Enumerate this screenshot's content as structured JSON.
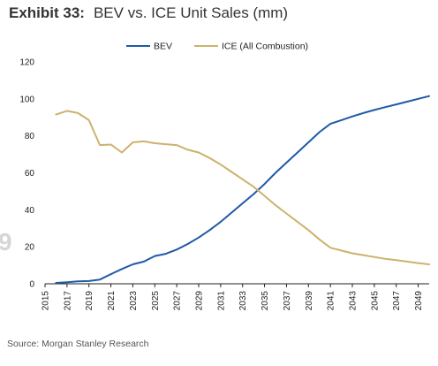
{
  "header": {
    "exhibit": "Exhibit 33:",
    "title": "BEV vs. ICE Unit Sales (mm)"
  },
  "watermark": "9",
  "source": "Source: Morgan Stanley Research",
  "chart_data": {
    "type": "line",
    "title": "BEV vs. ICE Unit Sales (mm)",
    "xlabel": "",
    "ylabel": "",
    "xlim": [
      2015,
      2050
    ],
    "ylim": [
      0,
      120
    ],
    "yticks": [
      0,
      20,
      40,
      60,
      80,
      100,
      120
    ],
    "xticks": [
      2015,
      2017,
      2019,
      2021,
      2023,
      2025,
      2027,
      2029,
      2031,
      2033,
      2035,
      2037,
      2039,
      2041,
      2043,
      2045,
      2047,
      2049
    ],
    "grid": false,
    "legend_position": "top-center",
    "x": [
      2016,
      2017,
      2018,
      2019,
      2020,
      2021,
      2022,
      2023,
      2024,
      2025,
      2026,
      2027,
      2028,
      2029,
      2030,
      2031,
      2032,
      2033,
      2034,
      2035,
      2036,
      2037,
      2038,
      2039,
      2040,
      2041,
      2042,
      2043,
      2044,
      2045,
      2046,
      2047,
      2048,
      2049,
      2050
    ],
    "series": [
      {
        "name": "BEV",
        "color": "#1f5aa6",
        "values": [
          0.5,
          0.8,
          1.3,
          1.5,
          2.3,
          5.2,
          8,
          10.5,
          12,
          15,
          16.2,
          18.5,
          21.5,
          25,
          29,
          33.5,
          38.5,
          43.5,
          48.5,
          54,
          60,
          65.5,
          71,
          76.5,
          82,
          86.5,
          88.5,
          90.5,
          92.3,
          94,
          95.5,
          97,
          98.5,
          100,
          101.5
        ]
      },
      {
        "name": "ICE (All Combustion)",
        "color": "#cdb26e",
        "values": [
          91.5,
          93.5,
          92.3,
          88.5,
          75,
          75.3,
          71,
          76.5,
          77,
          76,
          75.5,
          75,
          72.5,
          71,
          68,
          64.5,
          60.5,
          56.5,
          52.5,
          47.5,
          42.5,
          38,
          33.5,
          29,
          24,
          19.5,
          18,
          16.5,
          15.5,
          14.5,
          13.5,
          12.8,
          12,
          11.2,
          10.5
        ]
      }
    ]
  }
}
